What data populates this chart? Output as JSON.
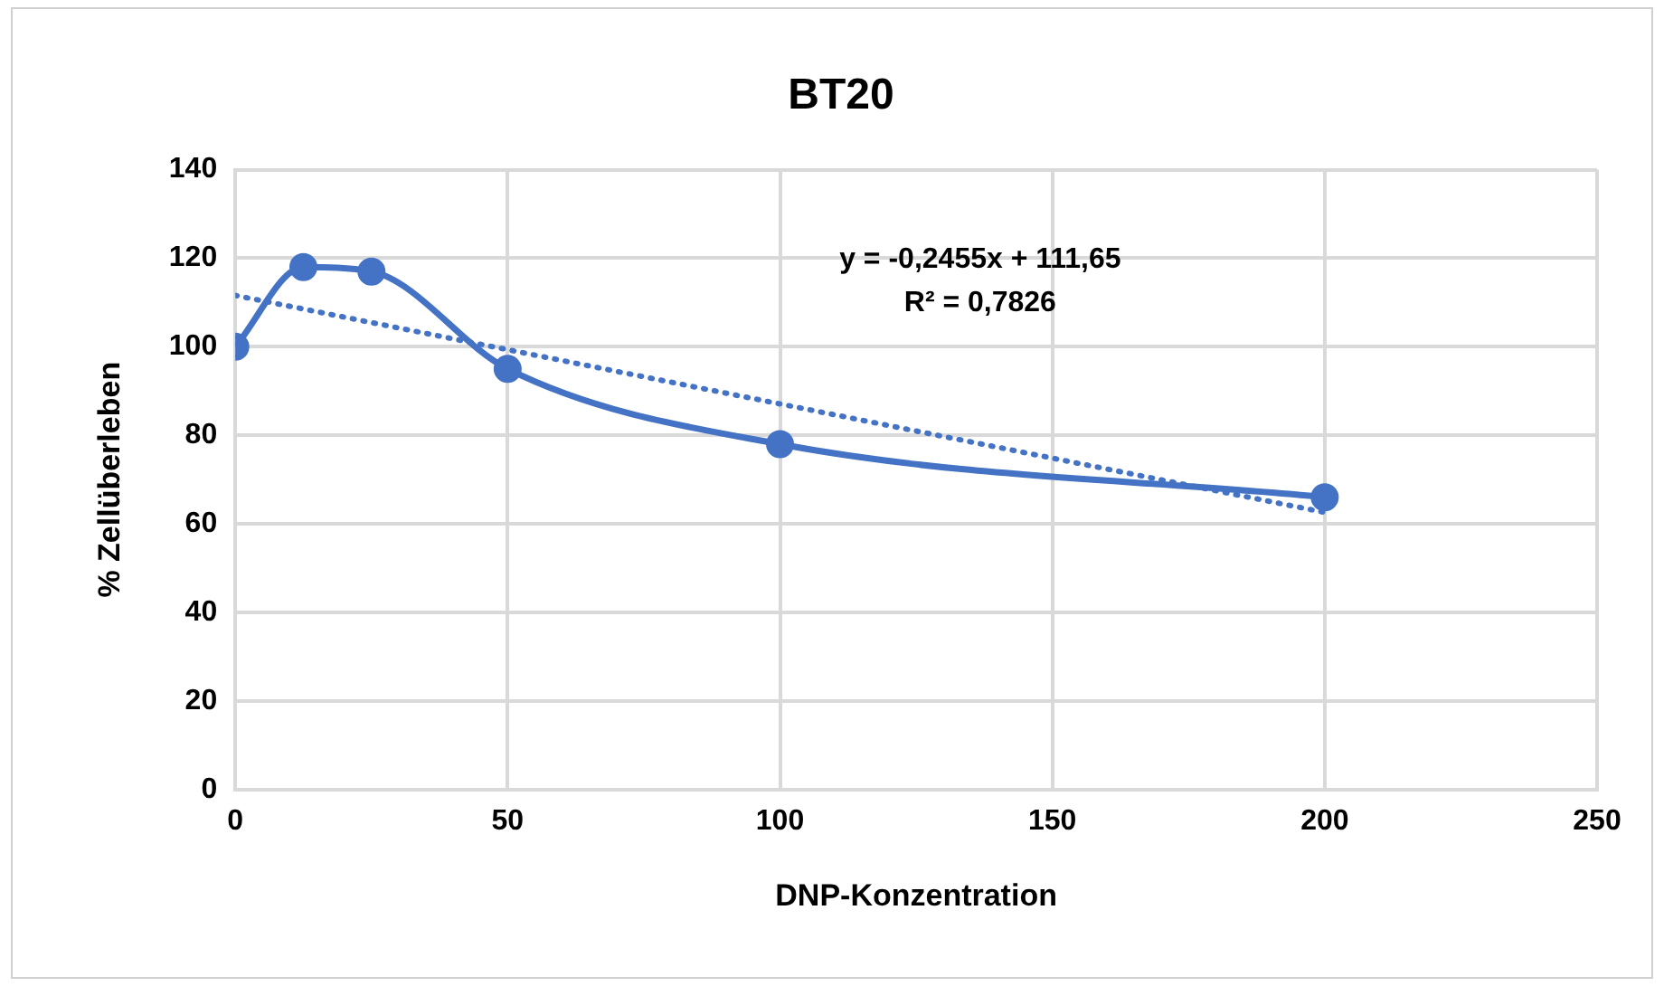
{
  "chart_data": {
    "type": "line",
    "title": "BT20",
    "xlabel": "DNP-Konzentration",
    "ylabel": "% Zellüberleben",
    "series": [
      {
        "type": "line",
        "color": "#4472c4",
        "x": [
          0,
          12.5,
          25,
          50,
          100,
          200
        ],
        "values": [
          100,
          118,
          117,
          95,
          78,
          66
        ],
        "marker": "circle",
        "line_style": "solid"
      },
      {
        "type": "line",
        "color": "#4472c4",
        "x": [
          0,
          200
        ],
        "values": [
          111.6,
          62.6
        ],
        "marker": "none",
        "line_style": "dotted"
      }
    ],
    "xlim": [
      0,
      250
    ],
    "xticks": [
      0,
      50,
      100,
      150,
      200,
      250
    ],
    "ylim": [
      0,
      140
    ],
    "yticks": [
      0,
      20,
      40,
      60,
      80,
      100,
      120,
      140
    ],
    "grid": true,
    "legend": false,
    "annotations": [
      "y = -0,2455x + 111,65",
      "R² = 0,7826"
    ]
  }
}
